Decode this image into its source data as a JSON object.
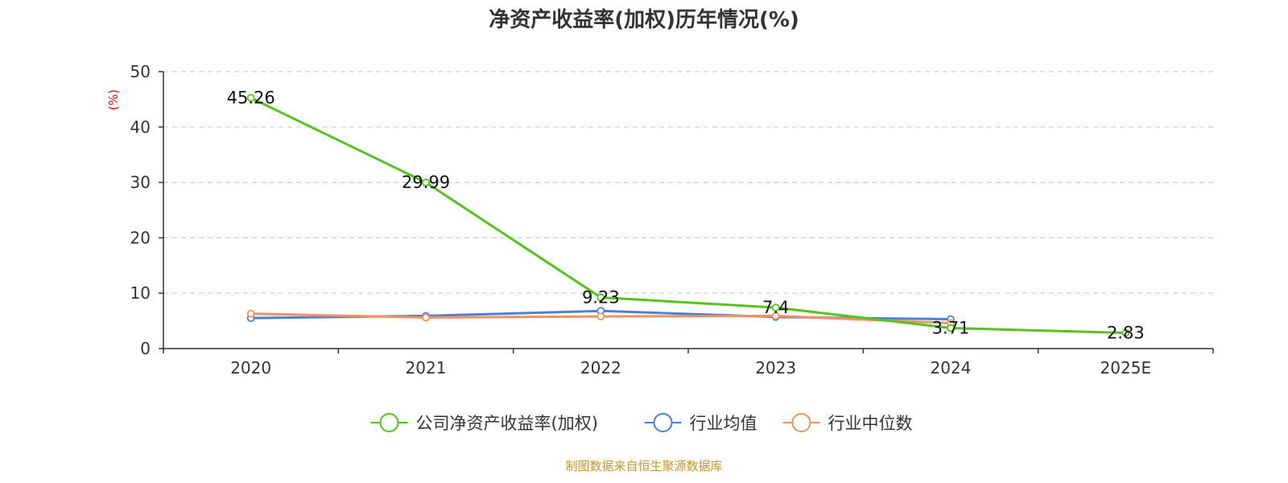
{
  "chart_data": {
    "type": "line",
    "title": "净资产收益率(加权)历年情况(%)",
    "ylabel": "(%)",
    "categories": [
      "2020",
      "2021",
      "2022",
      "2023",
      "2024",
      "2025E"
    ],
    "ylim": [
      0,
      50
    ],
    "yticks": [
      0,
      10,
      20,
      30,
      40,
      50
    ],
    "grid": true,
    "legend_position": "bottom",
    "series": [
      {
        "name": "公司净资产收益率(加权)",
        "color": "#52c41a",
        "values": [
          45.26,
          29.99,
          9.23,
          7.4,
          3.71,
          2.83
        ],
        "labels": [
          "45.26",
          "29.99",
          "9.23",
          "7.4",
          "3.71",
          "2.83"
        ]
      },
      {
        "name": "行业均值",
        "color": "#4e7fd9",
        "values": [
          5.5,
          5.9,
          6.8,
          5.7,
          5.3,
          null
        ]
      },
      {
        "name": "行业中位数",
        "color": "#f4915e",
        "values": [
          6.3,
          5.6,
          5.8,
          5.9,
          4.6,
          null
        ]
      }
    ]
  },
  "source": {
    "text": "制图数据来自恒生聚源数据库",
    "color": "#c8962a"
  },
  "ylabel_color": "#ff0000"
}
